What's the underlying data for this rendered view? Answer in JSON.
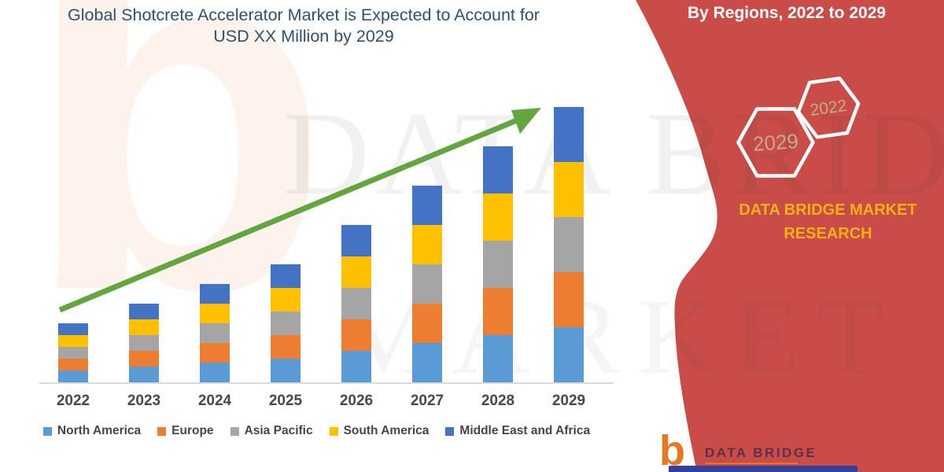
{
  "title": {
    "line1": "Global Shotcrete Accelerator Market is Expected to Account for",
    "line2": "USD XX Million by 2029"
  },
  "right_panel": {
    "heading": "By Regions, 2022 to 2029",
    "hexagons": [
      {
        "label": "2029"
      },
      {
        "label": "2022"
      }
    ],
    "brand_line1": "DATA BRIDGE MARKET",
    "brand_line2": "RESEARCH"
  },
  "footer_logo": {
    "glyph": "b",
    "wordmark": "DATA BRIDGE"
  },
  "watermark": {
    "logo_glyph": "b",
    "line1": "DATA BRIDGE",
    "line2": "MARKET RESEARCH"
  },
  "chart_data": {
    "type": "bar",
    "stacked": true,
    "title": "Global Shotcrete Accelerator Market is Expected to Account for USD XX Million by 2029",
    "categories": [
      "2022",
      "2023",
      "2024",
      "2025",
      "2026",
      "2027",
      "2028",
      "2029"
    ],
    "series": [
      {
        "name": "North America",
        "color": "#5B9BD5",
        "values": [
          15,
          20,
          25,
          30,
          40,
          50,
          60,
          70
        ]
      },
      {
        "name": "Europe",
        "color": "#ED7D31",
        "values": [
          15,
          20,
          25,
          30,
          40,
          50,
          60,
          70
        ]
      },
      {
        "name": "Asia Pacific",
        "color": "#A5A5A5",
        "values": [
          15,
          20,
          25,
          30,
          40,
          50,
          60,
          70
        ]
      },
      {
        "name": "South America",
        "color": "#FFC000",
        "values": [
          15,
          20,
          25,
          30,
          40,
          50,
          60,
          70
        ]
      },
      {
        "name": "Middle East and Africa",
        "color": "#4472C4",
        "values": [
          15,
          20,
          25,
          30,
          40,
          50,
          60,
          70
        ]
      }
    ],
    "totals": [
      75,
      100,
      125,
      150,
      200,
      250,
      300,
      350
    ],
    "units": "relative index (actual USD values masked as 'XX Million')",
    "xlabel": "",
    "ylabel": "",
    "ylim": [
      0,
      380
    ],
    "value_axis": "hidden",
    "grid": false,
    "legend_position": "bottom",
    "annotations": [
      "green upward trend arrow from 2022 to 2029"
    ]
  },
  "colors": {
    "banner_red": "#C94C48",
    "arrow_green": "#63A640",
    "title_blue": "#31506E",
    "brand_gold": "#F2B117",
    "hex_label_tan": "#C2AD88",
    "axis_gray": "#D9D9D9",
    "label_gray": "#47474F",
    "logo_orange": "#E87722",
    "logo_wordmark": "#5A3148",
    "logo_banner_blue": "#31409A"
  }
}
